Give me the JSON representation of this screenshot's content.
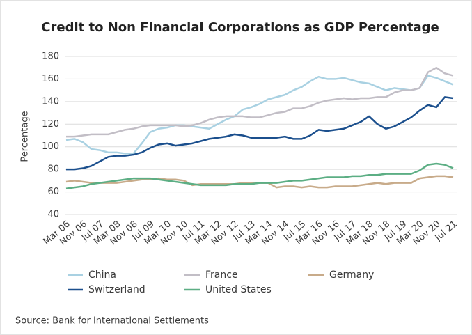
{
  "chart_data": {
    "type": "line",
    "title": "Credit to Non Financial Corporations as GDP Percentage",
    "y_label": "Percentage",
    "source": "Source: Bank for International Settlements",
    "categories": [
      "Mar 06",
      null,
      "Nov 06",
      null,
      "Jul 07",
      null,
      "Mar 08",
      null,
      "Nov 08",
      null,
      "Jul 09",
      null,
      "Mar 10",
      null,
      "Nov 10",
      null,
      "Jul 11",
      null,
      "Mar 12",
      null,
      "Nov 12",
      null,
      "Jul 13",
      null,
      "Mar 14",
      null,
      "Nov 14",
      null,
      "Jul 15",
      null,
      "Mar 16",
      null,
      "Nov 16",
      null,
      "Jul 17",
      null,
      "Mar 18",
      null,
      "Nov 18",
      null,
      "Jul 19",
      null,
      "Mar 20",
      null,
      "Nov 20",
      null,
      "Jul 21"
    ],
    "ylim": [
      40,
      180
    ],
    "yticks": [
      40,
      60,
      80,
      100,
      120,
      140,
      160,
      180
    ],
    "grid": true,
    "series": [
      {
        "name": "China",
        "color": "#a9d1e2",
        "values": [
          106,
          107,
          104,
          98,
          97,
          95,
          95,
          94,
          94,
          103,
          113,
          116,
          117,
          119,
          119,
          118,
          117,
          116,
          120,
          124,
          127,
          133,
          135,
          138,
          142,
          144,
          146,
          150,
          153,
          158,
          162,
          160,
          160,
          161,
          159,
          157,
          156,
          153,
          150,
          152,
          151,
          150,
          152,
          163,
          161,
          158,
          155
        ]
      },
      {
        "name": "France",
        "color": "#c2bec6",
        "values": [
          109,
          109,
          110,
          111,
          111,
          111,
          113,
          115,
          116,
          118,
          119,
          119,
          119,
          119,
          118,
          119,
          121,
          124,
          126,
          127,
          127,
          127,
          126,
          126,
          128,
          130,
          131,
          134,
          134,
          136,
          139,
          141,
          142,
          143,
          142,
          143,
          143,
          144,
          144,
          148,
          150,
          150,
          152,
          166,
          170,
          165,
          163
        ]
      },
      {
        "name": "Germany",
        "color": "#c8ab8a",
        "values": [
          69,
          70,
          69,
          68,
          68,
          68,
          68,
          69,
          70,
          71,
          71,
          72,
          71,
          71,
          70,
          66,
          67,
          67,
          67,
          67,
          67,
          68,
          68,
          68,
          68,
          64,
          65,
          65,
          64,
          65,
          64,
          64,
          65,
          65,
          65,
          66,
          67,
          68,
          67,
          68,
          68,
          68,
          72,
          73,
          74,
          74,
          73
        ]
      },
      {
        "name": "Switzerland",
        "color": "#1b4f8d",
        "values": [
          80,
          80,
          81,
          83,
          87,
          91,
          92,
          92,
          93,
          95,
          99,
          102,
          103,
          101,
          102,
          103,
          105,
          107,
          108,
          109,
          111,
          110,
          108,
          108,
          108,
          108,
          109,
          107,
          107,
          110,
          115,
          114,
          115,
          116,
          119,
          122,
          127,
          120,
          116,
          118,
          122,
          126,
          132,
          137,
          135,
          144,
          143
        ]
      },
      {
        "name": "United States",
        "color": "#5cae84",
        "values": [
          63,
          64,
          65,
          67,
          68,
          69,
          70,
          71,
          72,
          72,
          72,
          71,
          70,
          69,
          68,
          67,
          66,
          66,
          66,
          66,
          67,
          67,
          67,
          68,
          68,
          68,
          69,
          70,
          70,
          71,
          72,
          73,
          73,
          73,
          74,
          74,
          75,
          75,
          76,
          76,
          76,
          76,
          79,
          84,
          85,
          84,
          81
        ]
      }
    ]
  }
}
